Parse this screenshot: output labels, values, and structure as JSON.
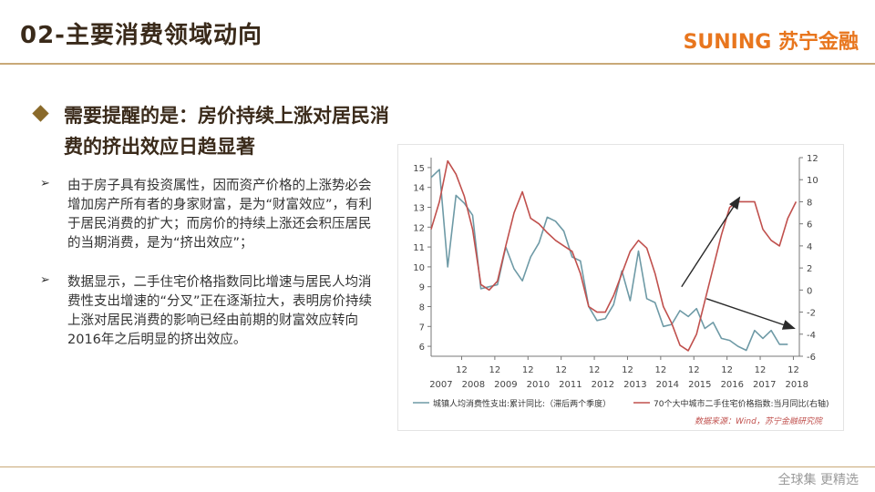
{
  "header": {
    "title": "02-主要消费领域动向",
    "logo": "SUNING 苏宁金融"
  },
  "headline": "需要提醒的是：房价持续上涨对居民消费的挤出效应日趋显著",
  "bullets": [
    "由于房子具有投资属性，因而资产价格的上涨势必会增加房产所有者的身家财富，是为“财富效应”，有利于居民消费的扩大；而房价的持续上涨还会积压居民的当期消费，是为“挤出效应”；",
    "数据显示，二手住宅价格指数同比增速与居民人均消费性支出增速的“分叉”正在逐渐拉大，表明房价持续上涨对居民消费的影响已经由前期的财富效应转向2016年之后明显的挤出效应。"
  ],
  "footer": "全球集 更精选",
  "colors": {
    "consumption": "#6e9aa6",
    "housing": "#c0504d",
    "arrow": "#2a2a2a",
    "accent": "#e8761e",
    "rule": "#c9a978"
  },
  "chart_data": {
    "type": "line",
    "x_tick_labels_top": [
      "12",
      "12",
      "12",
      "12",
      "12",
      "12",
      "12",
      "12",
      "12",
      "12",
      "12"
    ],
    "x_tick_labels_bottom": [
      "2007",
      "2008",
      "2009",
      "2010",
      "2011",
      "2012",
      "2013",
      "2014",
      "2015",
      "2016",
      "2017",
      "2018"
    ],
    "y_left_ticks": [
      "15",
      "14",
      "13",
      "12",
      "11",
      "10",
      "9",
      "8",
      "7",
      "6"
    ],
    "y_right_ticks": [
      "12",
      "10",
      "8",
      "6",
      "4",
      "2",
      "0",
      "-2",
      "-4",
      "-6"
    ],
    "ylim_left": [
      5.5,
      15.5
    ],
    "ylim_right": [
      -6,
      12
    ],
    "xlim": [
      2007.0,
      2018.1
    ],
    "series": [
      {
        "name": "城镇人均消费性支出:累计同比:（滞后两个季度）",
        "axis": "left",
        "x": [
          2007.0,
          2007.25,
          2007.5,
          2007.75,
          2008.0,
          2008.25,
          2008.5,
          2008.75,
          2009.0,
          2009.25,
          2009.5,
          2009.75,
          2010.0,
          2010.25,
          2010.5,
          2010.75,
          2011.0,
          2011.25,
          2011.5,
          2011.75,
          2012.0,
          2012.25,
          2012.5,
          2012.75,
          2013.0,
          2013.25,
          2013.5,
          2013.75,
          2014.0,
          2014.25,
          2014.5,
          2014.75,
          2015.0,
          2015.25,
          2015.5,
          2015.75,
          2016.0,
          2016.25,
          2016.5,
          2016.75,
          2017.0,
          2017.25,
          2017.5,
          2017.75
        ],
        "values": [
          14.5,
          14.9,
          10.0,
          13.6,
          13.2,
          12.6,
          8.9,
          9.0,
          9.1,
          11.0,
          9.9,
          9.3,
          10.5,
          11.2,
          12.5,
          12.3,
          11.8,
          10.5,
          10.3,
          8.0,
          7.3,
          7.4,
          8.1,
          9.8,
          8.3,
          10.8,
          8.4,
          8.2,
          7.0,
          7.1,
          7.8,
          7.5,
          7.9,
          6.9,
          7.2,
          6.4,
          6.3,
          6.0,
          5.8,
          6.8,
          6.4,
          6.8,
          6.1,
          6.1
        ]
      },
      {
        "name": "70个大中城市二手住宅价格指数:当月同比(右轴)",
        "axis": "right",
        "x": [
          2007.0,
          2007.25,
          2007.5,
          2007.75,
          2008.0,
          2008.25,
          2008.5,
          2008.75,
          2009.0,
          2009.25,
          2009.5,
          2009.75,
          2010.0,
          2010.25,
          2010.5,
          2010.75,
          2011.0,
          2011.25,
          2011.5,
          2011.75,
          2012.0,
          2012.25,
          2012.5,
          2012.75,
          2013.0,
          2013.25,
          2013.5,
          2013.75,
          2014.0,
          2014.25,
          2014.5,
          2014.75,
          2015.0,
          2015.25,
          2015.5,
          2015.75,
          2016.0,
          2016.25,
          2016.5,
          2016.75,
          2017.0,
          2017.25,
          2017.5,
          2017.75,
          2018.0
        ],
        "values": [
          5.5,
          8.0,
          11.7,
          10.5,
          8.5,
          5.5,
          0.5,
          0.0,
          0.8,
          4.0,
          7.0,
          8.9,
          6.5,
          6.0,
          5.2,
          4.5,
          4.0,
          3.5,
          1.5,
          -1.5,
          -2.0,
          -2.0,
          -0.5,
          1.5,
          3.5,
          4.5,
          3.8,
          1.5,
          -1.5,
          -3.0,
          -5.0,
          -5.5,
          -4.0,
          -1.0,
          2.0,
          5.0,
          7.5,
          8.0,
          8.0,
          8.0,
          5.5,
          4.5,
          4.0,
          6.5,
          8.0
        ]
      }
    ],
    "legend": [
      "城镇人均消费性支出:累计同比:（滞后两个季度）",
      "70个大中城市二手住宅价格指数:当月同比(右轴)"
    ],
    "legend_position": "bottom",
    "grid": false,
    "source": "数据来源：Wind，苏宁金融研究院"
  }
}
